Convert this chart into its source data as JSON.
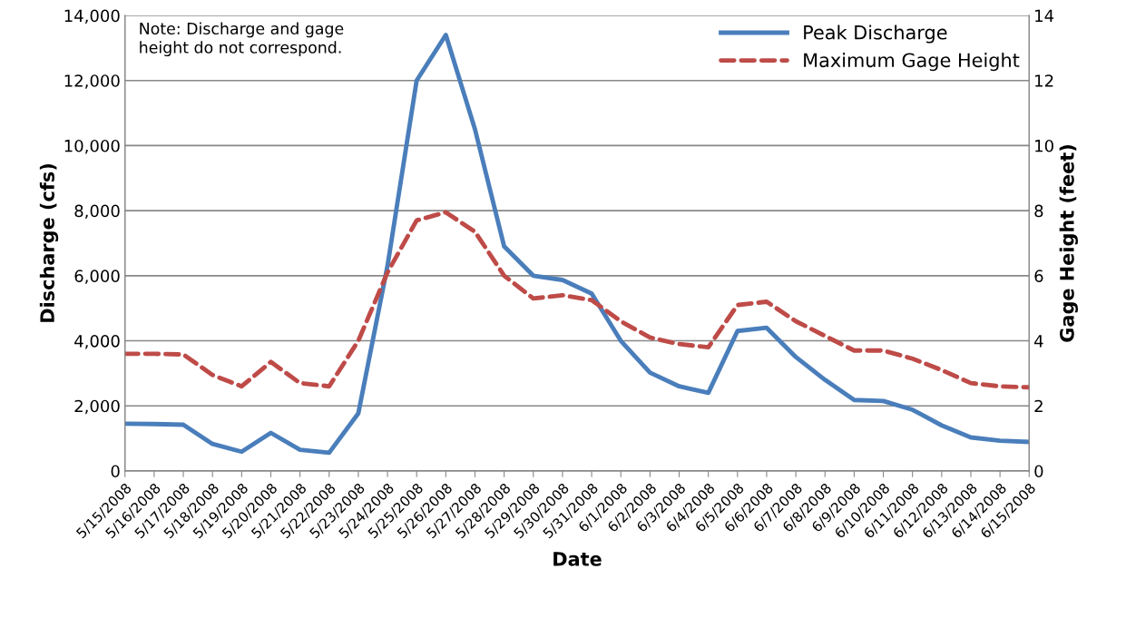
{
  "chart_data": {
    "type": "line",
    "xlabel": "Date",
    "ylabel": "Discharge (cfs)",
    "y2label": "Gage Height (feet)",
    "categories": [
      "5/15/2008",
      "5/16/2008",
      "5/17/2008",
      "5/18/2008",
      "5/19/2008",
      "5/20/2008",
      "5/21/2008",
      "5/22/2008",
      "5/23/2008",
      "5/24/2008",
      "5/25/2008",
      "5/26/2008",
      "5/27/2008",
      "5/28/2008",
      "5/29/2008",
      "5/30/2008",
      "5/31/2008",
      "6/1/2008",
      "6/2/2008",
      "6/3/2008",
      "6/4/2008",
      "6/5/2008",
      "6/6/2008",
      "6/7/2008",
      "6/8/2008",
      "6/9/2008",
      "6/10/2008",
      "6/11/2008",
      "6/12/2008",
      "6/13/2008",
      "6/14/2008",
      "6/15/2008"
    ],
    "series": [
      {
        "name": "Peak Discharge",
        "color": "#4a7ebb",
        "line_style": "solid",
        "values": [
          1450,
          1440,
          1420,
          830,
          590,
          1170,
          650,
          560,
          1770,
          6300,
          12000,
          13400,
          10500,
          6900,
          6000,
          5870,
          5450,
          4000,
          3020,
          2600,
          2400,
          4300,
          4400,
          3500,
          2800,
          2180,
          2150,
          1880,
          1400,
          1030,
          930,
          890
        ]
      },
      {
        "name": "Maximum Gage Height",
        "color": "#be4b48",
        "line_style": "dashed",
        "axis": "y2",
        "values": [
          3.6,
          3.6,
          3.58,
          2.95,
          2.6,
          3.35,
          2.7,
          2.6,
          4.0,
          6.1,
          7.7,
          7.95,
          7.35,
          6.0,
          5.3,
          5.4,
          5.25,
          4.6,
          4.1,
          3.9,
          3.8,
          5.1,
          5.2,
          4.6,
          4.15,
          3.7,
          3.7,
          3.45,
          3.1,
          2.7,
          2.6,
          2.57
        ]
      }
    ],
    "ylim": [
      0,
      14000
    ],
    "yticks": [
      {
        "value": 0,
        "label": "0"
      },
      {
        "value": 2000,
        "label": "2,000"
      },
      {
        "value": 4000,
        "label": "4,000"
      },
      {
        "value": 6000,
        "label": "6,000"
      },
      {
        "value": 8000,
        "label": "8,000"
      },
      {
        "value": 10000,
        "label": "10,000"
      },
      {
        "value": 12000,
        "label": "12,000"
      },
      {
        "value": 14000,
        "label": "14,000"
      }
    ],
    "y2lim": [
      0,
      14
    ],
    "y2ticks": [
      0,
      2,
      4,
      6,
      8,
      10,
      12,
      14
    ],
    "grid": "y",
    "legend": "top right",
    "marker": "none",
    "annotations": [
      "Note: Discharge and gage\nheight do not correspond."
    ]
  }
}
